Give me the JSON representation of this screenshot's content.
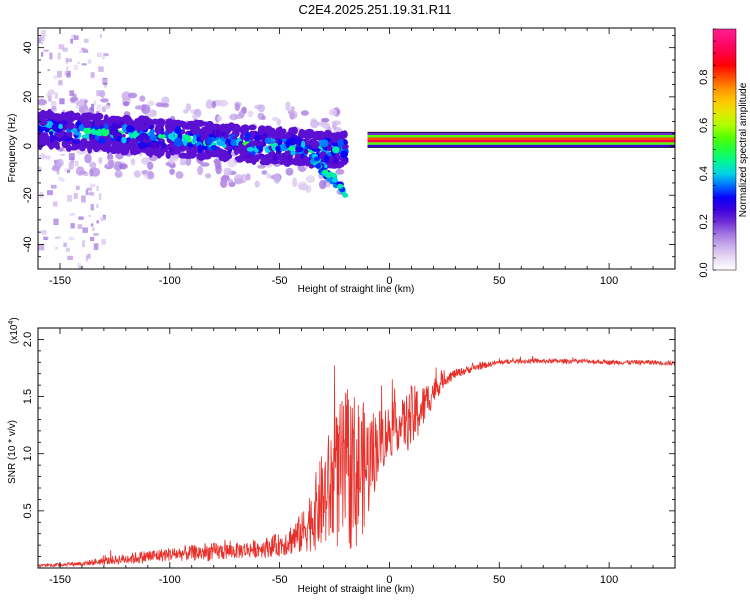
{
  "title": "C2E4.2025.251.19.31.R11",
  "chart_data": [
    {
      "type": "heatmap",
      "name": "spectrogram",
      "xlabel": "Height of straight line (km)",
      "ylabel": "Frequency (Hz)",
      "xlim": [
        -160,
        130
      ],
      "ylim": [
        -50,
        48
      ],
      "x_ticks": [
        -150,
        -100,
        -50,
        0,
        50,
        100
      ],
      "y_ticks": [
        -40,
        -20,
        0,
        20,
        40
      ],
      "colorbar": {
        "label": "Normalized spectral amplitude",
        "range": [
          0.0,
          1.0
        ],
        "ticks": [
          0.0,
          0.2,
          0.4,
          0.6,
          0.8
        ],
        "tick_labels": [
          "0.0",
          "0.2",
          "0.4",
          "0.6",
          "0.8"
        ],
        "colors": [
          "#ffffff",
          "#dcc8f0",
          "#a070e0",
          "#5000d0",
          "#0000ff",
          "#00c8ff",
          "#00ff80",
          "#40ff00",
          "#c8ff00",
          "#ffd000",
          "#ff8000",
          "#ff0000",
          "#ff0060",
          "#ff2090"
        ]
      },
      "features": [
        {
          "region": "noisy band",
          "x_range": [
            -160,
            -20
          ],
          "freq_center": [
            7,
            -2
          ],
          "amplitude": 0.35
        },
        {
          "region": "steady tone",
          "x_range": [
            -10,
            130
          ],
          "freq_center": 2,
          "amplitude": 0.9
        }
      ]
    },
    {
      "type": "line",
      "name": "snr",
      "xlabel": "Height of straight line (km)",
      "ylabel": "SNR (10 * v/v)",
      "y_multiplier": "(x10",
      "y_multiplier_exp": "4",
      "y_multiplier_close": ")",
      "xlim": [
        -160,
        130
      ],
      "ylim": [
        0,
        2.1
      ],
      "x_ticks": [
        -150,
        -100,
        -50,
        0,
        50,
        100
      ],
      "y_ticks": [
        0.5,
        1.0,
        1.5,
        2.0
      ],
      "y_tick_labels": [
        "0.5",
        "1.0",
        "1.5",
        "2.0"
      ],
      "series": [
        {
          "name": "SNR",
          "color": "#e8302a",
          "x": [
            -160,
            -140,
            -125,
            -110,
            -100,
            -90,
            -80,
            -70,
            -60,
            -50,
            -40,
            -35,
            -30,
            -25,
            -20,
            -15,
            -10,
            -5,
            0,
            5,
            10,
            15,
            20,
            25,
            30,
            40,
            50,
            60,
            70,
            80,
            90,
            100,
            110,
            120,
            130
          ],
          "values": [
            0.02,
            0.04,
            0.07,
            0.1,
            0.12,
            0.13,
            0.14,
            0.15,
            0.17,
            0.2,
            0.3,
            0.45,
            0.6,
            0.75,
            0.85,
            0.85,
            0.9,
            1.1,
            1.2,
            1.25,
            1.3,
            1.4,
            1.55,
            1.65,
            1.7,
            1.76,
            1.8,
            1.81,
            1.81,
            1.81,
            1.81,
            1.8,
            1.8,
            1.8,
            1.79
          ],
          "noise": [
            0.01,
            0.02,
            0.04,
            0.06,
            0.06,
            0.07,
            0.08,
            0.07,
            0.08,
            0.1,
            0.18,
            0.3,
            0.45,
            0.6,
            0.7,
            0.7,
            0.5,
            0.3,
            0.25,
            0.2,
            0.3,
            0.2,
            0.12,
            0.06,
            0.04,
            0.03,
            0.02,
            0.02,
            0.02,
            0.02,
            0.02,
            0.02,
            0.02,
            0.02,
            0.02
          ]
        }
      ]
    }
  ]
}
